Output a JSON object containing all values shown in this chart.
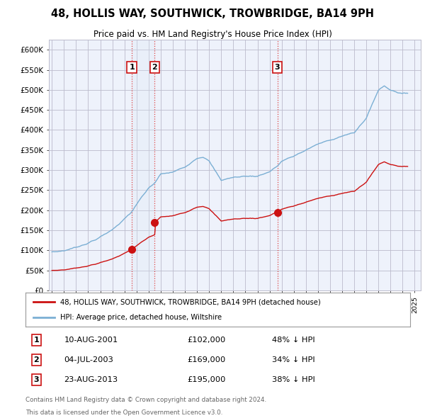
{
  "title": "48, HOLLIS WAY, SOUTHWICK, TROWBRIDGE, BA14 9PH",
  "subtitle": "Price paid vs. HM Land Registry's House Price Index (HPI)",
  "legend_line1": "48, HOLLIS WAY, SOUTHWICK, TROWBRIDGE, BA14 9PH (detached house)",
  "legend_line2": "HPI: Average price, detached house, Wiltshire",
  "footnote1": "Contains HM Land Registry data © Crown copyright and database right 2024.",
  "footnote2": "This data is licensed under the Open Government Licence v3.0.",
  "sales": [
    {
      "label": "1",
      "date_decimal": 2001.608,
      "price": 102000
    },
    {
      "label": "2",
      "date_decimal": 2003.503,
      "price": 169000
    },
    {
      "label": "3",
      "date_decimal": 2013.641,
      "price": 195000
    }
  ],
  "sale_display": [
    {
      "label": "1",
      "date_str": "10-AUG-2001",
      "price_str": "£102,000",
      "pct_str": "48% ↓ HPI"
    },
    {
      "label": "2",
      "date_str": "04-JUL-2003",
      "price_str": "£169,000",
      "pct_str": "34% ↓ HPI"
    },
    {
      "label": "3",
      "date_str": "23-AUG-2013",
      "price_str": "£195,000",
      "pct_str": "38% ↓ HPI"
    }
  ],
  "ylim": [
    0,
    625000
  ],
  "ytick_values": [
    0,
    50000,
    100000,
    150000,
    200000,
    250000,
    300000,
    350000,
    400000,
    450000,
    500000,
    550000,
    600000
  ],
  "xlim_left": 1994.75,
  "xlim_right": 2025.5,
  "bg_color": "#eef2fb",
  "red_color": "#cc1111",
  "blue_color": "#7bafd4",
  "grid_color": "#bbbbcc",
  "sale_band_color": "#dce8f5",
  "vline_color": "#dd4444"
}
